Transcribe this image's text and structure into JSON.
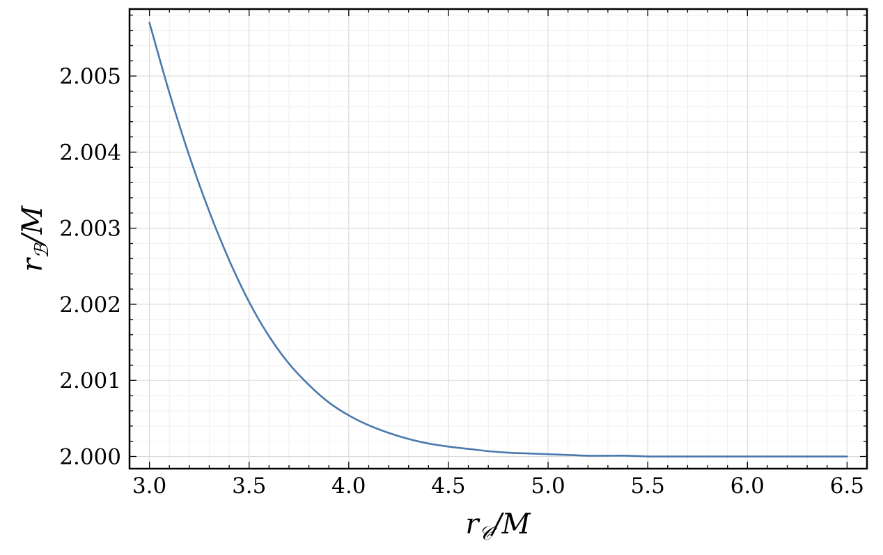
{
  "chart_data": {
    "type": "line",
    "title": "",
    "xlabel": {
      "base": "r",
      "sub": "𝒞",
      "rest": "/M"
    },
    "ylabel": {
      "base": "r",
      "sub": "ℬ",
      "rest": "/M"
    },
    "xlim": [
      2.9,
      6.6
    ],
    "ylim": [
      1.99984,
      2.00588
    ],
    "x_ticks": [
      3.0,
      3.5,
      4.0,
      4.5,
      5.0,
      5.5,
      6.0,
      6.5
    ],
    "x_tick_labels": [
      "3.0",
      "3.5",
      "4.0",
      "4.5",
      "5.0",
      "5.5",
      "6.0",
      "6.5"
    ],
    "y_ticks": [
      2.0,
      2.001,
      2.002,
      2.003,
      2.004,
      2.005
    ],
    "y_tick_labels": [
      "2.000",
      "2.001",
      "2.002",
      "2.003",
      "2.004",
      "2.005"
    ],
    "grid": true,
    "legend": "none",
    "series": [
      {
        "color": "#4a78ad",
        "x": [
          3.0,
          3.1,
          3.2,
          3.3,
          3.4,
          3.5,
          3.6,
          3.7,
          3.8,
          3.9,
          4.0,
          4.1,
          4.2,
          4.3,
          4.4,
          4.5,
          4.6,
          4.7,
          4.8,
          4.9,
          5.0,
          5.1,
          5.2,
          5.3,
          5.4,
          5.5,
          5.6,
          5.7,
          5.8,
          5.9,
          6.0,
          6.1,
          6.2,
          6.3,
          6.4,
          6.5
        ],
        "y": [
          2.0057,
          2.00478,
          2.00395,
          2.00322,
          2.00258,
          2.00203,
          2.00158,
          2.00122,
          2.00094,
          2.00071,
          2.00054,
          2.00041,
          2.00031,
          2.00023,
          2.00017,
          2.00013,
          2.0001,
          2.00007,
          2.00005,
          2.00004,
          2.00003,
          2.00002,
          2.00001,
          2.00001,
          2.00001,
          2.0,
          2.0,
          2.0,
          2.0,
          2.0,
          2.0,
          2.0,
          2.0,
          2.0,
          2.0,
          2.0
        ]
      }
    ]
  }
}
